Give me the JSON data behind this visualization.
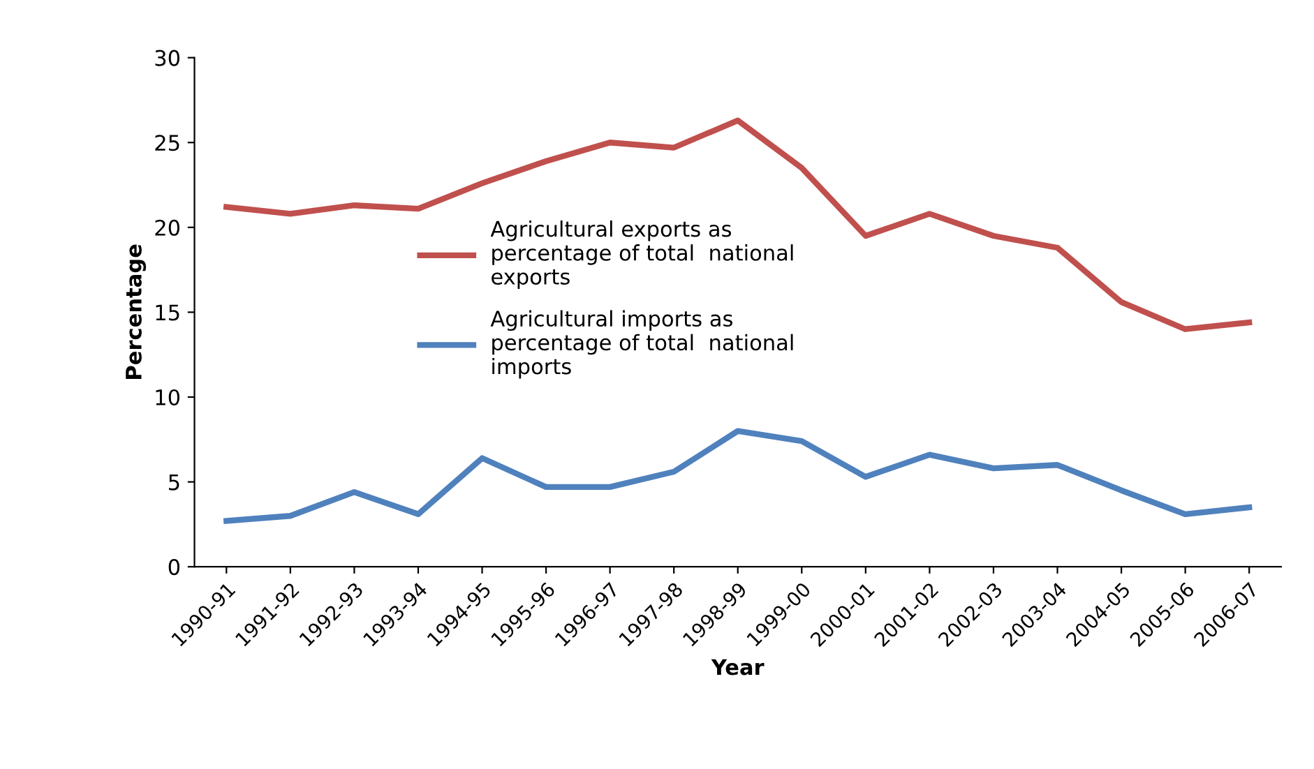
{
  "chart_data": {
    "type": "line",
    "xlabel": "Year",
    "ylabel": "Percentage",
    "categories": [
      "1990-91",
      "1991-92",
      "1992-93",
      "1993-94",
      "1994-95",
      "1995-96",
      "1996-97",
      "1997-98",
      "1998-99",
      "1999-00",
      "2000-01",
      "2001-02",
      "2002-03",
      "2003-04",
      "2004-05",
      "2005-06",
      "2006-07"
    ],
    "series": [
      {
        "name": "Agricultural exports as\npercentage of total  national\nexports",
        "color": "#c0504d",
        "values": [
          21.2,
          20.8,
          21.3,
          21.1,
          22.6,
          23.9,
          25.0,
          24.7,
          26.3,
          23.5,
          19.5,
          20.8,
          19.5,
          18.8,
          15.6,
          14.0,
          14.4
        ]
      },
      {
        "name": "Agricultural imports as\npercentage of total  national\nimports",
        "color": "#4f81bd",
        "values": [
          2.7,
          3.0,
          4.4,
          3.1,
          6.4,
          4.7,
          4.7,
          5.6,
          8.0,
          7.4,
          5.3,
          6.6,
          5.8,
          6.0,
          4.5,
          3.1,
          3.5
        ]
      }
    ],
    "ylim": [
      0,
      30
    ],
    "yticks": [
      0,
      5,
      10,
      15,
      20,
      25,
      30
    ],
    "grid": false,
    "legend": "center",
    "marker": "none",
    "line_style": "solid"
  }
}
